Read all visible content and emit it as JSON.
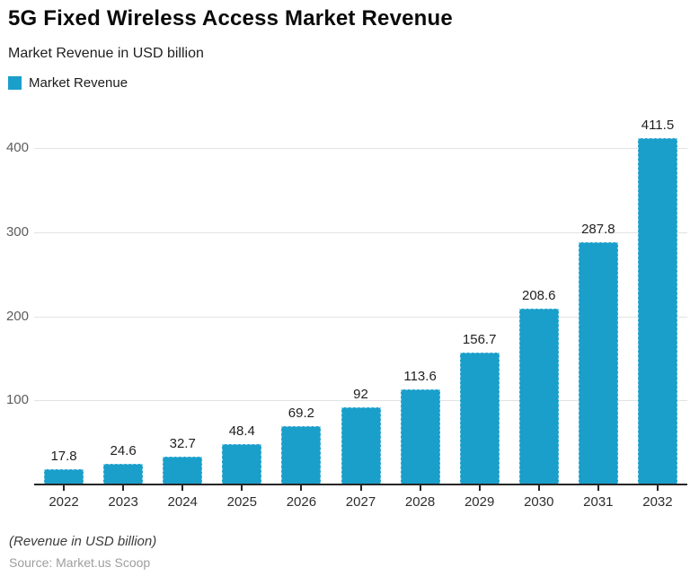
{
  "title": "5G Fixed Wireless Access Market Revenue",
  "subtitle": "Market Revenue in USD billion",
  "legend": {
    "label": "Market Revenue",
    "swatch_color": "#1a9fcb"
  },
  "footer": {
    "note": "(Revenue in USD billion)",
    "source": "Source: Market.us Scoop"
  },
  "chart_data": {
    "type": "bar",
    "title": "5G Fixed Wireless Access Market Revenue",
    "subtitle": "Market Revenue in USD billion",
    "categories": [
      "2022",
      "2023",
      "2024",
      "2025",
      "2026",
      "2027",
      "2028",
      "2029",
      "2030",
      "2031",
      "2032"
    ],
    "values": [
      17.8,
      24.6,
      32.7,
      48.4,
      69.2,
      92,
      113.6,
      156.7,
      208.6,
      287.8,
      411.5
    ],
    "labels": [
      "17.8",
      "24.6",
      "32.7",
      "48.4",
      "69.2",
      "92",
      "113.6",
      "156.7",
      "208.6",
      "287.8",
      "411.5"
    ],
    "series_name": "Market Revenue",
    "xlabel": "",
    "ylabel": "",
    "ylim": [
      0,
      448
    ],
    "yticks": [
      100,
      200,
      300,
      400
    ],
    "grid": true,
    "legend_position": "top-left",
    "bar_color": "#1a9fcb",
    "gridline_color": "#e3e3e3",
    "axis_color": "#262626"
  }
}
